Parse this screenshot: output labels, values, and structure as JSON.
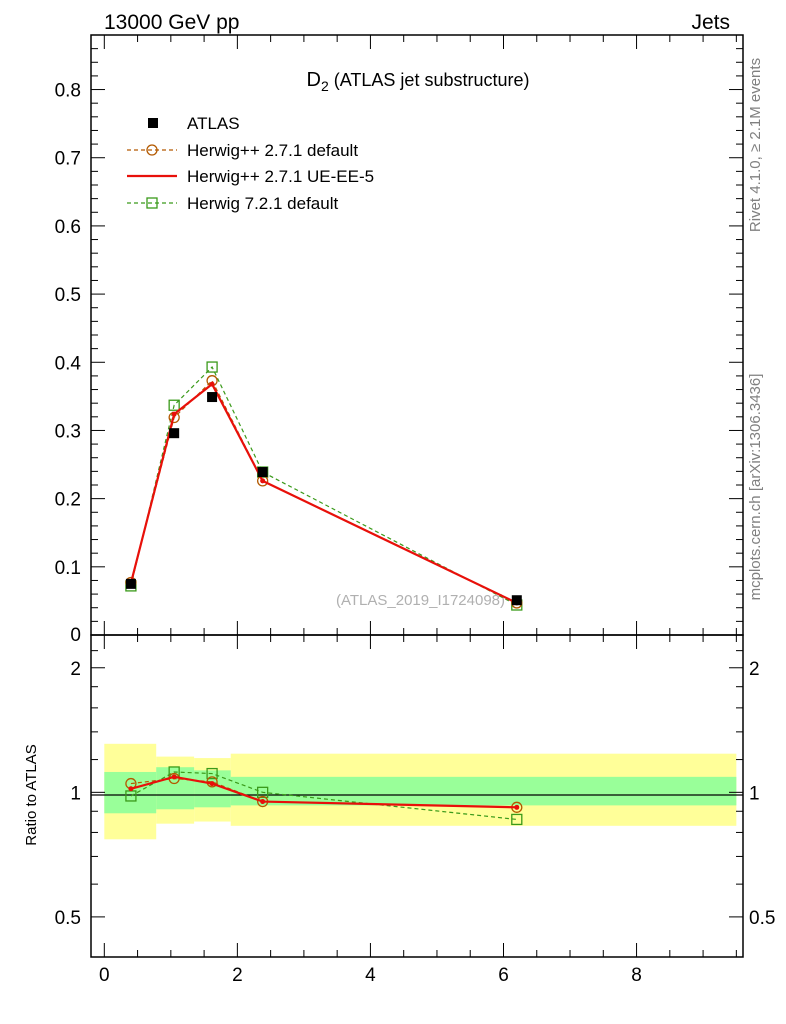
{
  "header": {
    "energy_label": "13000 GeV pp",
    "category_label": "Jets"
  },
  "side_labels": {
    "rivet": "Rivet 4.1.0, ≥ 2.1M events",
    "mcplots": "mcplots.cern.ch [arXiv:1306.3436]"
  },
  "chart_data": [
    {
      "type": "line",
      "title_main": "D",
      "title_sub": "2",
      "title_rest": " (ATLAS jet substructure)",
      "analysis_label": "(ATLAS_2019_I1724098)",
      "xlabel": "",
      "ylabel": "",
      "xlim": [
        -0.2,
        9.6
      ],
      "ylim": [
        0,
        0.88
      ],
      "yticks": [
        0.1,
        0.2,
        0.3,
        0.4,
        0.5,
        0.6,
        0.7,
        0.8
      ],
      "ytick_labels": [
        "0.1",
        "0.2",
        "0.3",
        "0.4",
        "0.5",
        "0.6",
        "0.7",
        "0.8"
      ],
      "ytick_zero_label": "0",
      "series": [
        {
          "name": "ATLAS",
          "style": "data",
          "color": "#000000",
          "x": [
            0.4,
            1.05,
            1.62,
            2.38,
            6.2
          ],
          "values": [
            0.075,
            0.296,
            0.349,
            0.239,
            0.051
          ]
        },
        {
          "name": "Herwig++ 2.7.1 default",
          "style": "dashed-circle",
          "color": "#b35900",
          "x": [
            0.4,
            1.05,
            1.62,
            2.38,
            6.2
          ],
          "values": [
            0.077,
            0.319,
            0.373,
            0.226,
            0.047
          ]
        },
        {
          "name": "Herwig++ 2.7.1 UE-EE-5",
          "style": "solid",
          "color": "#e8100a",
          "x": [
            0.4,
            1.05,
            1.62,
            2.38,
            6.2
          ],
          "values": [
            0.076,
            0.324,
            0.368,
            0.226,
            0.047
          ]
        },
        {
          "name": "Herwig 7.2.1 default",
          "style": "dashed-square",
          "color": "#3a9a1a",
          "x": [
            0.4,
            1.05,
            1.62,
            2.38,
            6.2
          ],
          "values": [
            0.072,
            0.337,
            0.393,
            0.239,
            0.044
          ]
        }
      ]
    },
    {
      "type": "line",
      "ylabel": "Ratio to ATLAS",
      "yscale": "log",
      "ylim": [
        0.4,
        2.4
      ],
      "yticks": [
        0.5,
        1,
        2
      ],
      "ytick_labels": [
        "0.5",
        "1",
        "2"
      ],
      "xlim": [
        -0.2,
        9.6
      ],
      "xticks": [
        0,
        2,
        4,
        6,
        8
      ],
      "xtick_labels": [
        "0",
        "2",
        "4",
        "6",
        "8"
      ],
      "reference": 1,
      "uncertainty_bands": [
        {
          "x_from": 0.0,
          "x_to": 0.78,
          "stat_low": 0.89,
          "stat_high": 1.12,
          "total_low": 0.77,
          "total_high": 1.31
        },
        {
          "x_from": 0.78,
          "x_to": 1.35,
          "stat_low": 0.91,
          "stat_high": 1.15,
          "total_low": 0.84,
          "total_high": 1.22
        },
        {
          "x_from": 1.35,
          "x_to": 1.9,
          "stat_low": 0.92,
          "stat_high": 1.13,
          "total_low": 0.85,
          "total_high": 1.21
        },
        {
          "x_from": 1.9,
          "x_to": 9.5,
          "stat_low": 0.93,
          "stat_high": 1.09,
          "total_low": 0.83,
          "total_high": 1.24
        }
      ],
      "series": [
        {
          "name": "Herwig++ 2.7.1 default",
          "style": "dashed-circle",
          "color": "#b35900",
          "x": [
            0.4,
            1.05,
            1.62,
            2.38,
            6.2
          ],
          "values": [
            1.05,
            1.08,
            1.06,
            0.95,
            0.92
          ]
        },
        {
          "name": "Herwig++ 2.7.1 UE-EE-5",
          "style": "solid",
          "color": "#e8100a",
          "x": [
            0.4,
            1.05,
            1.62,
            2.38,
            6.2
          ],
          "values": [
            1.02,
            1.09,
            1.05,
            0.95,
            0.92
          ]
        },
        {
          "name": "Herwig 7.2.1 default",
          "style": "dashed-square",
          "color": "#3a9a1a",
          "x": [
            0.4,
            1.05,
            1.62,
            2.38,
            6.2
          ],
          "values": [
            0.98,
            1.12,
            1.11,
            1.0,
            0.86
          ]
        }
      ]
    }
  ],
  "colors": {
    "stat_band": "#99ff99",
    "total_band": "#ffff99",
    "axis": "#000000"
  }
}
